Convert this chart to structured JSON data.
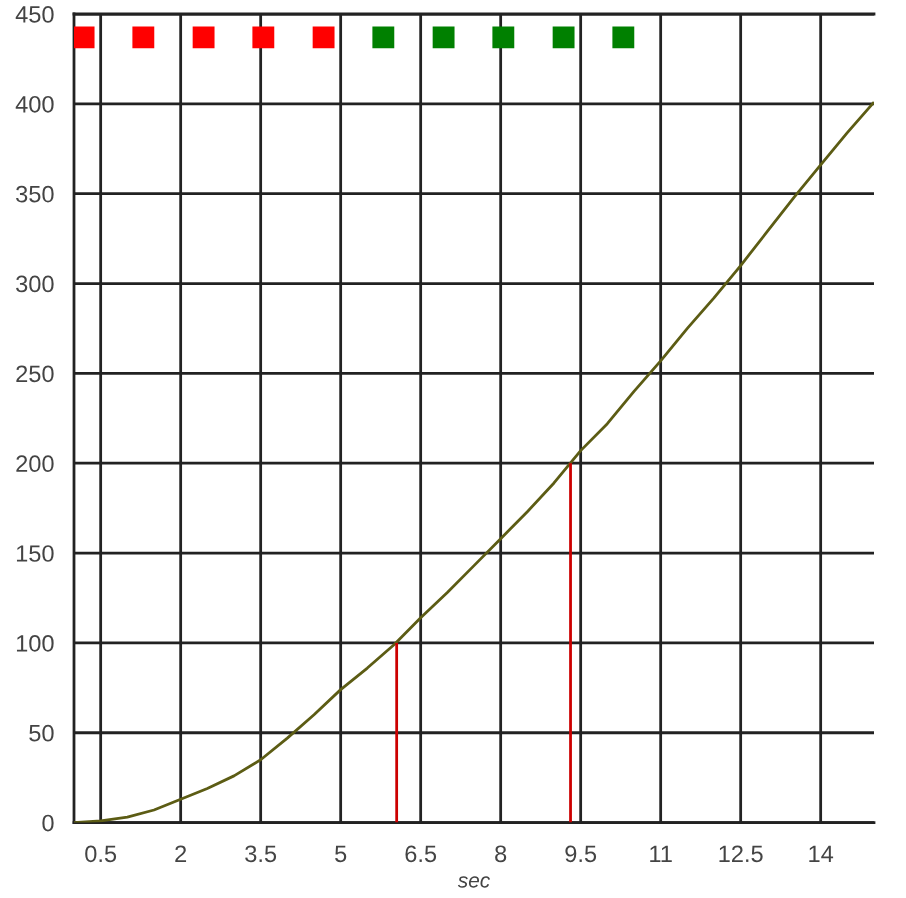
{
  "chart_data": {
    "type": "line",
    "xlabel": "sec",
    "xlim": [
      0,
      15
    ],
    "xticks": [
      0.5,
      2,
      3.5,
      5,
      6.5,
      8,
      9.5,
      11,
      12.5,
      14
    ],
    "ylim": [
      0,
      450
    ],
    "yticks": [
      0,
      50,
      100,
      150,
      200,
      250,
      300,
      350,
      400,
      450
    ],
    "grid": true,
    "series": [
      {
        "color": "#5c5c14",
        "marker": "none",
        "line_style": "solid",
        "x": [
          0,
          0.5,
          1,
          1.5,
          2,
          2.5,
          3,
          3.5,
          4,
          4.5,
          5,
          5.5,
          6,
          6.5,
          7,
          7.5,
          8,
          8.5,
          9,
          9.5,
          10,
          10.5,
          11,
          11.5,
          12,
          12.5,
          13,
          13.5,
          14,
          14.5,
          15
        ],
        "values": [
          0,
          1,
          3,
          7,
          13,
          19,
          26,
          35,
          47,
          60,
          74,
          86,
          99,
          114,
          128,
          143,
          158,
          173,
          189,
          207,
          222,
          240,
          257,
          275,
          292,
          310,
          329,
          348,
          366,
          384,
          401
        ]
      },
      {
        "type": "line",
        "color": "#cc0000",
        "marker": "none",
        "line_style": "solid",
        "x": [
          6.05,
          6.05
        ],
        "values": [
          0,
          100
        ]
      },
      {
        "type": "line",
        "color": "#cc0000",
        "marker": "none",
        "line_style": "solid",
        "x": [
          9.31,
          9.31
        ],
        "values": [
          0,
          200
        ]
      },
      {
        "type": "scatter",
        "color": "#ff0000",
        "marker": "square",
        "x": [
          0.18,
          1.3,
          2.43,
          3.55,
          4.68
        ],
        "values": [
          437,
          437,
          437,
          437,
          437
        ]
      },
      {
        "type": "scatter",
        "color": "#008000",
        "marker": "square",
        "x": [
          5.8,
          6.93,
          8.05,
          9.18,
          10.3
        ],
        "values": [
          437,
          437,
          437,
          437,
          437
        ]
      }
    ]
  }
}
